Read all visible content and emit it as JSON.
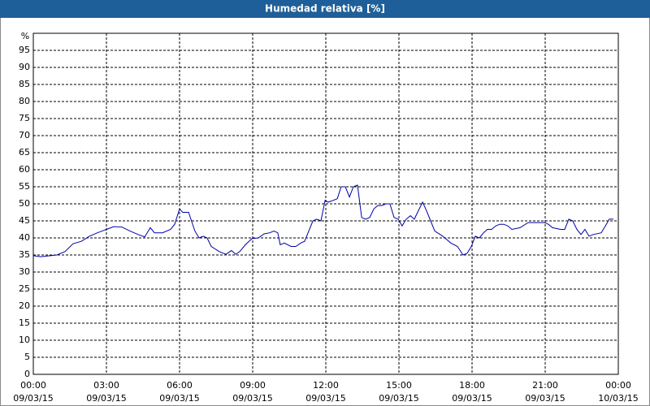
{
  "chart_data": {
    "type": "line",
    "title": "Humedad relativa [%]",
    "ylabel": "%",
    "xlim": [
      0,
      24
    ],
    "xticks": [
      {
        "value": 0,
        "label": "00:00"
      },
      {
        "value": 3,
        "label": "03:00"
      },
      {
        "value": 6,
        "label": "06:00"
      },
      {
        "value": 9,
        "label": "09:00"
      },
      {
        "value": 12,
        "label": "12:00"
      },
      {
        "value": 15,
        "label": "15:00"
      },
      {
        "value": 18,
        "label": "18:00"
      },
      {
        "value": 21,
        "label": "21:00"
      },
      {
        "value": 24,
        "label": "00:00"
      }
    ],
    "xtick_dates": [
      "09/03/15",
      "09/03/15",
      "09/03/15",
      "09/03/15",
      "09/03/15",
      "09/03/15",
      "09/03/15",
      "09/03/15",
      "10/03/15"
    ],
    "ylim": [
      0,
      100
    ],
    "yticks": [
      0,
      5,
      10,
      15,
      20,
      25,
      30,
      35,
      40,
      45,
      50,
      55,
      60,
      65,
      70,
      75,
      80,
      85,
      90,
      95
    ],
    "grid": true,
    "series": [
      {
        "color": "#0000a8",
        "x": [
          0,
          0.3,
          0.97,
          1.3,
          1.63,
          1.97,
          2.3,
          2.63,
          3,
          3.3,
          3.63,
          3.97,
          4.3,
          4.57,
          4.8,
          4.97,
          5.3,
          5.63,
          5.8,
          6,
          6.13,
          6.37,
          6.63,
          6.8,
          6.97,
          7.13,
          7.3,
          7.63,
          7.9,
          8.13,
          8.3,
          8.47,
          8.7,
          8.97,
          9.23,
          9.47,
          9.7,
          9.87,
          10.03,
          10.13,
          10.3,
          10.57,
          10.77,
          10.97,
          11.13,
          11.3,
          11.47,
          11.63,
          11.8,
          11.97,
          12.1,
          12.3,
          12.47,
          12.63,
          12.8,
          12.97,
          13.13,
          13.3,
          13.47,
          13.63,
          13.8,
          13.97,
          14.13,
          14.3,
          14.47,
          14.63,
          14.8,
          14.97,
          15.13,
          15.3,
          15.47,
          15.63,
          15.8,
          15.97,
          16.13,
          16.3,
          16.47,
          16.8,
          17.13,
          17.4,
          17.63,
          17.8,
          17.97,
          18.13,
          18.3,
          18.47,
          18.63,
          18.8,
          18.97,
          19.13,
          19.3,
          19.47,
          19.63,
          19.97,
          20.3,
          20.63,
          20.97,
          21.13,
          21.3,
          21.63,
          21.8,
          21.97,
          22.13,
          22.3,
          22.47,
          22.63,
          22.8,
          22.97,
          23.3,
          23.47,
          23.63,
          23.8
        ],
        "values": [
          34.8,
          34.5,
          35,
          36,
          38.3,
          39,
          40.5,
          41.5,
          42.5,
          43.3,
          43.2,
          42,
          41,
          40.3,
          43,
          41.5,
          41.5,
          42.5,
          44,
          48.5,
          47.5,
          47.5,
          42,
          40,
          40.5,
          40,
          37.5,
          36,
          35.2,
          36.3,
          35.2,
          36,
          38,
          39.8,
          40,
          41.2,
          41.5,
          42,
          41.5,
          38,
          38.5,
          37.5,
          37.5,
          38.5,
          39,
          42,
          45,
          45.5,
          45,
          51,
          50.5,
          51,
          51.5,
          55,
          55,
          52,
          55,
          55.5,
          46,
          45.5,
          46,
          48.5,
          49.5,
          49.5,
          50,
          50,
          46,
          45.5,
          43.5,
          45.5,
          46.5,
          45.5,
          48,
          50.5,
          48,
          45,
          42,
          40.5,
          38.5,
          37.5,
          35,
          35.5,
          37.5,
          40.5,
          40,
          41.5,
          42.5,
          42.5,
          43.5,
          44,
          44,
          43.5,
          42.5,
          43,
          44.5,
          44.5,
          44.5,
          44,
          43,
          42.5,
          42.5,
          45.5,
          45,
          42.5,
          41,
          42.5,
          40.5,
          41,
          41.5,
          43.5,
          45.5,
          45.5
        ]
      }
    ]
  }
}
